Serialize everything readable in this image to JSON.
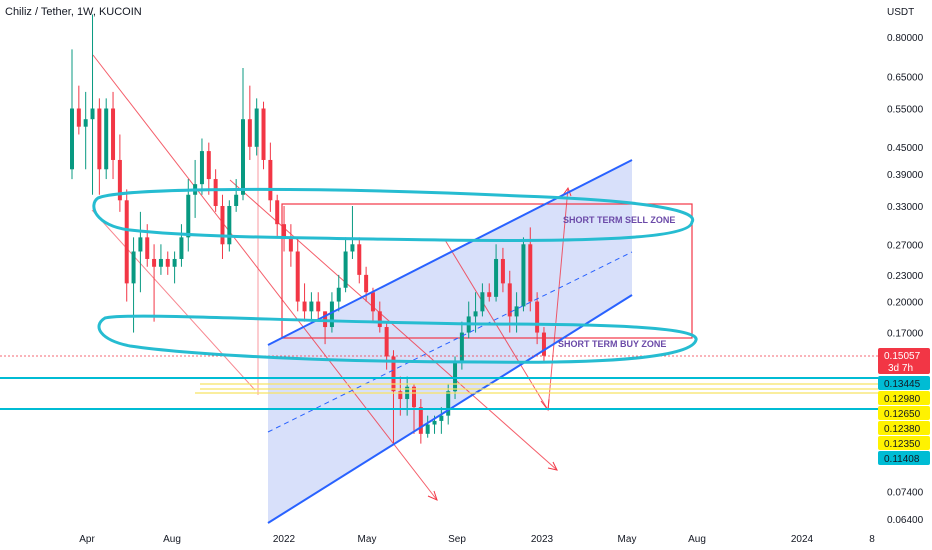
{
  "header": {
    "title": "Chiliz / Tether, 1W, KUCOIN"
  },
  "chart_data": {
    "type": "candlestick",
    "symbol": "Chiliz / Tether",
    "interval": "1W",
    "exchange": "KUCOIN",
    "y_scale": "log",
    "y_unit": "USDT",
    "y_ticks": [
      0.8,
      0.65,
      0.55,
      0.45,
      0.39,
      0.33,
      0.27,
      0.23,
      0.2,
      0.17,
      0.074,
      0.064
    ],
    "y_tick_labels": [
      "0.80000",
      "0.65000",
      "0.55000",
      "0.45000",
      "0.39000",
      "0.33000",
      "0.27000",
      "0.23000",
      "0.20000",
      "0.17000",
      "0.07400",
      "0.06400"
    ],
    "x_ticks": [
      "Apr",
      "Aug",
      "2022",
      "May",
      "Sep",
      "2023",
      "May",
      "Aug",
      "2024",
      "8"
    ],
    "price_tags": [
      {
        "label": "0.15057",
        "sub": "3d 7h",
        "value": 0.15057,
        "bg": "#f23645",
        "fg": "#ffffff"
      },
      {
        "label": "0.13445",
        "value": 0.13445,
        "bg": "#00bcd4",
        "fg": "#131722"
      },
      {
        "label": "0.12980",
        "value": 0.1298,
        "bg": "#fff200",
        "fg": "#131722"
      },
      {
        "label": "0.12650",
        "value": 0.1265,
        "bg": "#fff200",
        "fg": "#131722"
      },
      {
        "label": "0.12380",
        "value": 0.1238,
        "bg": "#fff200",
        "fg": "#131722"
      },
      {
        "label": "0.12350",
        "value": 0.1235,
        "bg": "#fff200",
        "fg": "#131722"
      },
      {
        "label": "0.11408",
        "value": 0.11408,
        "bg": "#00bcd4",
        "fg": "#131722"
      }
    ],
    "annotations": [
      {
        "text": "SHORT TERM SELL ZONE",
        "zone": "sell"
      },
      {
        "text": "SHORT TERM BUY ZONE",
        "zone": "buy"
      }
    ],
    "candles": [
      {
        "o": 0.4,
        "h": 0.75,
        "l": 0.38,
        "c": 0.55
      },
      {
        "o": 0.55,
        "h": 0.62,
        "l": 0.48,
        "c": 0.5
      },
      {
        "o": 0.5,
        "h": 0.6,
        "l": 0.4,
        "c": 0.52
      },
      {
        "o": 0.52,
        "h": 0.9,
        "l": 0.35,
        "c": 0.55
      },
      {
        "o": 0.55,
        "h": 0.58,
        "l": 0.35,
        "c": 0.4
      },
      {
        "o": 0.4,
        "h": 0.58,
        "l": 0.38,
        "c": 0.55
      },
      {
        "o": 0.55,
        "h": 0.6,
        "l": 0.38,
        "c": 0.42
      },
      {
        "o": 0.42,
        "h": 0.48,
        "l": 0.32,
        "c": 0.34
      },
      {
        "o": 0.34,
        "h": 0.36,
        "l": 0.2,
        "c": 0.22
      },
      {
        "o": 0.22,
        "h": 0.28,
        "l": 0.17,
        "c": 0.26
      },
      {
        "o": 0.26,
        "h": 0.32,
        "l": 0.21,
        "c": 0.28
      },
      {
        "o": 0.28,
        "h": 0.3,
        "l": 0.24,
        "c": 0.25
      },
      {
        "o": 0.25,
        "h": 0.27,
        "l": 0.18,
        "c": 0.24
      },
      {
        "o": 0.24,
        "h": 0.27,
        "l": 0.23,
        "c": 0.25
      },
      {
        "o": 0.25,
        "h": 0.26,
        "l": 0.23,
        "c": 0.24
      },
      {
        "o": 0.24,
        "h": 0.26,
        "l": 0.22,
        "c": 0.25
      },
      {
        "o": 0.25,
        "h": 0.3,
        "l": 0.24,
        "c": 0.28
      },
      {
        "o": 0.28,
        "h": 0.38,
        "l": 0.26,
        "c": 0.35
      },
      {
        "o": 0.35,
        "h": 0.42,
        "l": 0.31,
        "c": 0.37
      },
      {
        "o": 0.37,
        "h": 0.47,
        "l": 0.35,
        "c": 0.44
      },
      {
        "o": 0.44,
        "h": 0.46,
        "l": 0.35,
        "c": 0.38
      },
      {
        "o": 0.38,
        "h": 0.4,
        "l": 0.32,
        "c": 0.33
      },
      {
        "o": 0.33,
        "h": 0.35,
        "l": 0.25,
        "c": 0.27
      },
      {
        "o": 0.27,
        "h": 0.34,
        "l": 0.26,
        "c": 0.33
      },
      {
        "o": 0.33,
        "h": 0.38,
        "l": 0.32,
        "c": 0.35
      },
      {
        "o": 0.35,
        "h": 0.68,
        "l": 0.34,
        "c": 0.52
      },
      {
        "o": 0.52,
        "h": 0.62,
        "l": 0.42,
        "c": 0.45
      },
      {
        "o": 0.45,
        "h": 0.58,
        "l": 0.43,
        "c": 0.55
      },
      {
        "o": 0.55,
        "h": 0.57,
        "l": 0.4,
        "c": 0.42
      },
      {
        "o": 0.42,
        "h": 0.46,
        "l": 0.32,
        "c": 0.34
      },
      {
        "o": 0.34,
        "h": 0.35,
        "l": 0.28,
        "c": 0.3
      },
      {
        "o": 0.3,
        "h": 0.33,
        "l": 0.26,
        "c": 0.28
      },
      {
        "o": 0.28,
        "h": 0.3,
        "l": 0.24,
        "c": 0.26
      },
      {
        "o": 0.26,
        "h": 0.28,
        "l": 0.19,
        "c": 0.2
      },
      {
        "o": 0.2,
        "h": 0.22,
        "l": 0.18,
        "c": 0.19
      },
      {
        "o": 0.19,
        "h": 0.21,
        "l": 0.18,
        "c": 0.2
      },
      {
        "o": 0.2,
        "h": 0.21,
        "l": 0.18,
        "c": 0.19
      },
      {
        "o": 0.19,
        "h": 0.19,
        "l": 0.16,
        "c": 0.175
      },
      {
        "o": 0.175,
        "h": 0.21,
        "l": 0.17,
        "c": 0.2
      },
      {
        "o": 0.2,
        "h": 0.23,
        "l": 0.19,
        "c": 0.215
      },
      {
        "o": 0.215,
        "h": 0.28,
        "l": 0.21,
        "c": 0.26
      },
      {
        "o": 0.26,
        "h": 0.33,
        "l": 0.25,
        "c": 0.27
      },
      {
        "o": 0.27,
        "h": 0.28,
        "l": 0.22,
        "c": 0.23
      },
      {
        "o": 0.23,
        "h": 0.24,
        "l": 0.2,
        "c": 0.21
      },
      {
        "o": 0.21,
        "h": 0.215,
        "l": 0.18,
        "c": 0.19
      },
      {
        "o": 0.19,
        "h": 0.2,
        "l": 0.17,
        "c": 0.175
      },
      {
        "o": 0.175,
        "h": 0.18,
        "l": 0.14,
        "c": 0.15
      },
      {
        "o": 0.15,
        "h": 0.155,
        "l": 0.095,
        "c": 0.125
      },
      {
        "o": 0.125,
        "h": 0.135,
        "l": 0.11,
        "c": 0.12
      },
      {
        "o": 0.12,
        "h": 0.135,
        "l": 0.11,
        "c": 0.128
      },
      {
        "o": 0.128,
        "h": 0.13,
        "l": 0.1,
        "c": 0.115
      },
      {
        "o": 0.115,
        "h": 0.12,
        "l": 0.095,
        "c": 0.1
      },
      {
        "o": 0.1,
        "h": 0.11,
        "l": 0.098,
        "c": 0.105
      },
      {
        "o": 0.105,
        "h": 0.11,
        "l": 0.1,
        "c": 0.107
      },
      {
        "o": 0.107,
        "h": 0.115,
        "l": 0.1,
        "c": 0.11
      },
      {
        "o": 0.11,
        "h": 0.13,
        "l": 0.105,
        "c": 0.125
      },
      {
        "o": 0.125,
        "h": 0.15,
        "l": 0.12,
        "c": 0.145
      },
      {
        "o": 0.145,
        "h": 0.18,
        "l": 0.14,
        "c": 0.17
      },
      {
        "o": 0.17,
        "h": 0.2,
        "l": 0.165,
        "c": 0.185
      },
      {
        "o": 0.185,
        "h": 0.21,
        "l": 0.17,
        "c": 0.19
      },
      {
        "o": 0.19,
        "h": 0.22,
        "l": 0.185,
        "c": 0.21
      },
      {
        "o": 0.21,
        "h": 0.22,
        "l": 0.2,
        "c": 0.205
      },
      {
        "o": 0.205,
        "h": 0.27,
        "l": 0.2,
        "c": 0.25
      },
      {
        "o": 0.25,
        "h": 0.265,
        "l": 0.21,
        "c": 0.22
      },
      {
        "o": 0.22,
        "h": 0.235,
        "l": 0.17,
        "c": 0.185
      },
      {
        "o": 0.185,
        "h": 0.21,
        "l": 0.17,
        "c": 0.195
      },
      {
        "o": 0.195,
        "h": 0.28,
        "l": 0.19,
        "c": 0.27
      },
      {
        "o": 0.27,
        "h": 0.295,
        "l": 0.19,
        "c": 0.2
      },
      {
        "o": 0.2,
        "h": 0.21,
        "l": 0.16,
        "c": 0.17
      },
      {
        "o": 0.17,
        "h": 0.175,
        "l": 0.145,
        "c": 0.15057
      }
    ]
  },
  "colors": {
    "bull": "#089981",
    "bear": "#f23645",
    "channel": "#2962ff",
    "channel_fill": "#b8c7f5",
    "ellipse": "#26bcd1",
    "grid_line": "#e0e3eb"
  }
}
